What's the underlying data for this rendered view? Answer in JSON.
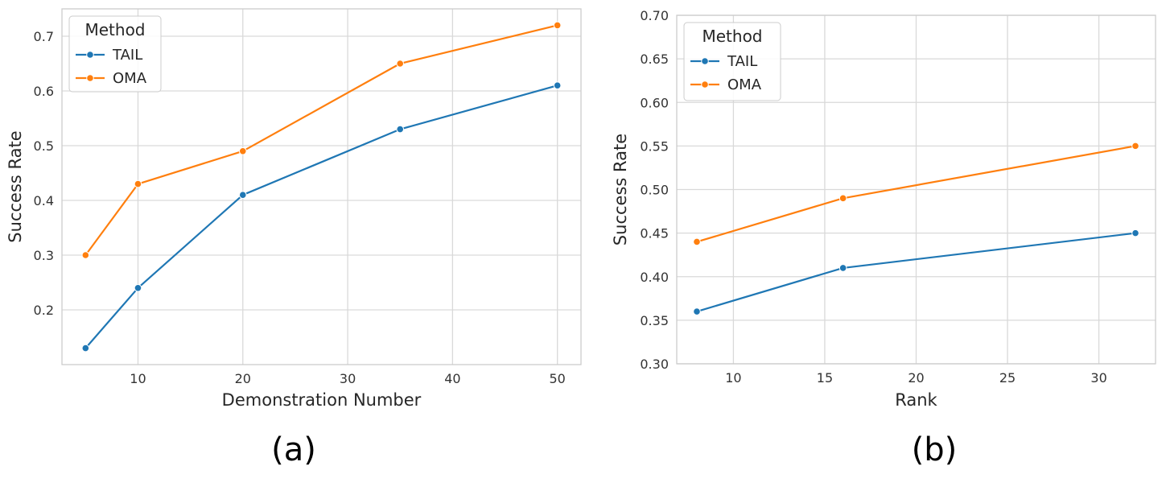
{
  "chart_data": [
    {
      "type": "line",
      "caption": "(a)",
      "xlabel": "Demonstration Number",
      "ylabel": "Success Rate",
      "x": [
        5,
        10,
        20,
        35,
        50
      ],
      "xlim": [
        2.75,
        52.25
      ],
      "ylim": [
        0.1,
        0.75
      ],
      "xticks": [
        10,
        20,
        30,
        40,
        50
      ],
      "yticks": [
        0.2,
        0.3,
        0.4,
        0.5,
        0.6,
        0.7
      ],
      "ytick_decimals": 1,
      "grid": true,
      "legend": {
        "title": "Method",
        "placement": "top-left"
      },
      "series": [
        {
          "name": "TAIL",
          "color": "#1f77b4",
          "values": [
            0.13,
            0.24,
            0.41,
            0.53,
            0.61
          ]
        },
        {
          "name": "OMA",
          "color": "#ff7f0e",
          "values": [
            0.3,
            0.43,
            0.49,
            0.65,
            0.72
          ]
        }
      ]
    },
    {
      "type": "line",
      "caption": "(b)",
      "xlabel": "Rank",
      "ylabel": "Success Rate",
      "x": [
        8,
        16,
        32
      ],
      "xlim": [
        6.9,
        33.1
      ],
      "ylim": [
        0.3,
        0.7
      ],
      "xticks": [
        10,
        15,
        20,
        25,
        30
      ],
      "yticks": [
        0.3,
        0.35,
        0.4,
        0.45,
        0.5,
        0.55,
        0.6,
        0.65,
        0.7
      ],
      "ytick_decimals": 2,
      "grid": true,
      "legend": {
        "title": "Method",
        "placement": "top-left"
      },
      "series": [
        {
          "name": "TAIL",
          "color": "#1f77b4",
          "values": [
            0.36,
            0.41,
            0.45
          ]
        },
        {
          "name": "OMA",
          "color": "#ff7f0e",
          "values": [
            0.44,
            0.49,
            0.55
          ]
        }
      ]
    }
  ]
}
